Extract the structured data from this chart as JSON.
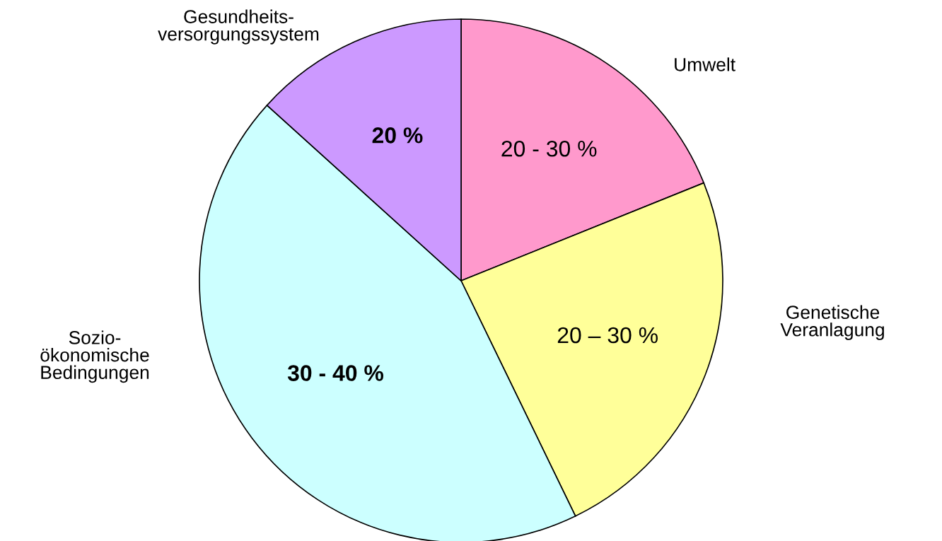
{
  "chart_data": {
    "type": "pie",
    "categories": [
      "Umwelt",
      "Genetische\nVeranlagung",
      "Sozio-\nökonomische\nBedingungen",
      "Gesundheits-\nversorgungssystem"
    ],
    "values": [
      18.9,
      23.9,
      43.9,
      13.3
    ],
    "colors": [
      "#ff99cc",
      "#ffff99",
      "#ccffff",
      "#cc99ff"
    ],
    "annotations": [
      {
        "text": "20 - 30 %",
        "x": "Umwelt"
      },
      {
        "text": "20 – 30 %",
        "x": "Genetische\nVeranlagung"
      },
      {
        "text": "30 - 40 %",
        "x": "Sozio-\nökonomische\nBedingungen"
      },
      {
        "text": "20 %",
        "x": "Gesundheits-\nversorgungssystem"
      }
    ]
  }
}
